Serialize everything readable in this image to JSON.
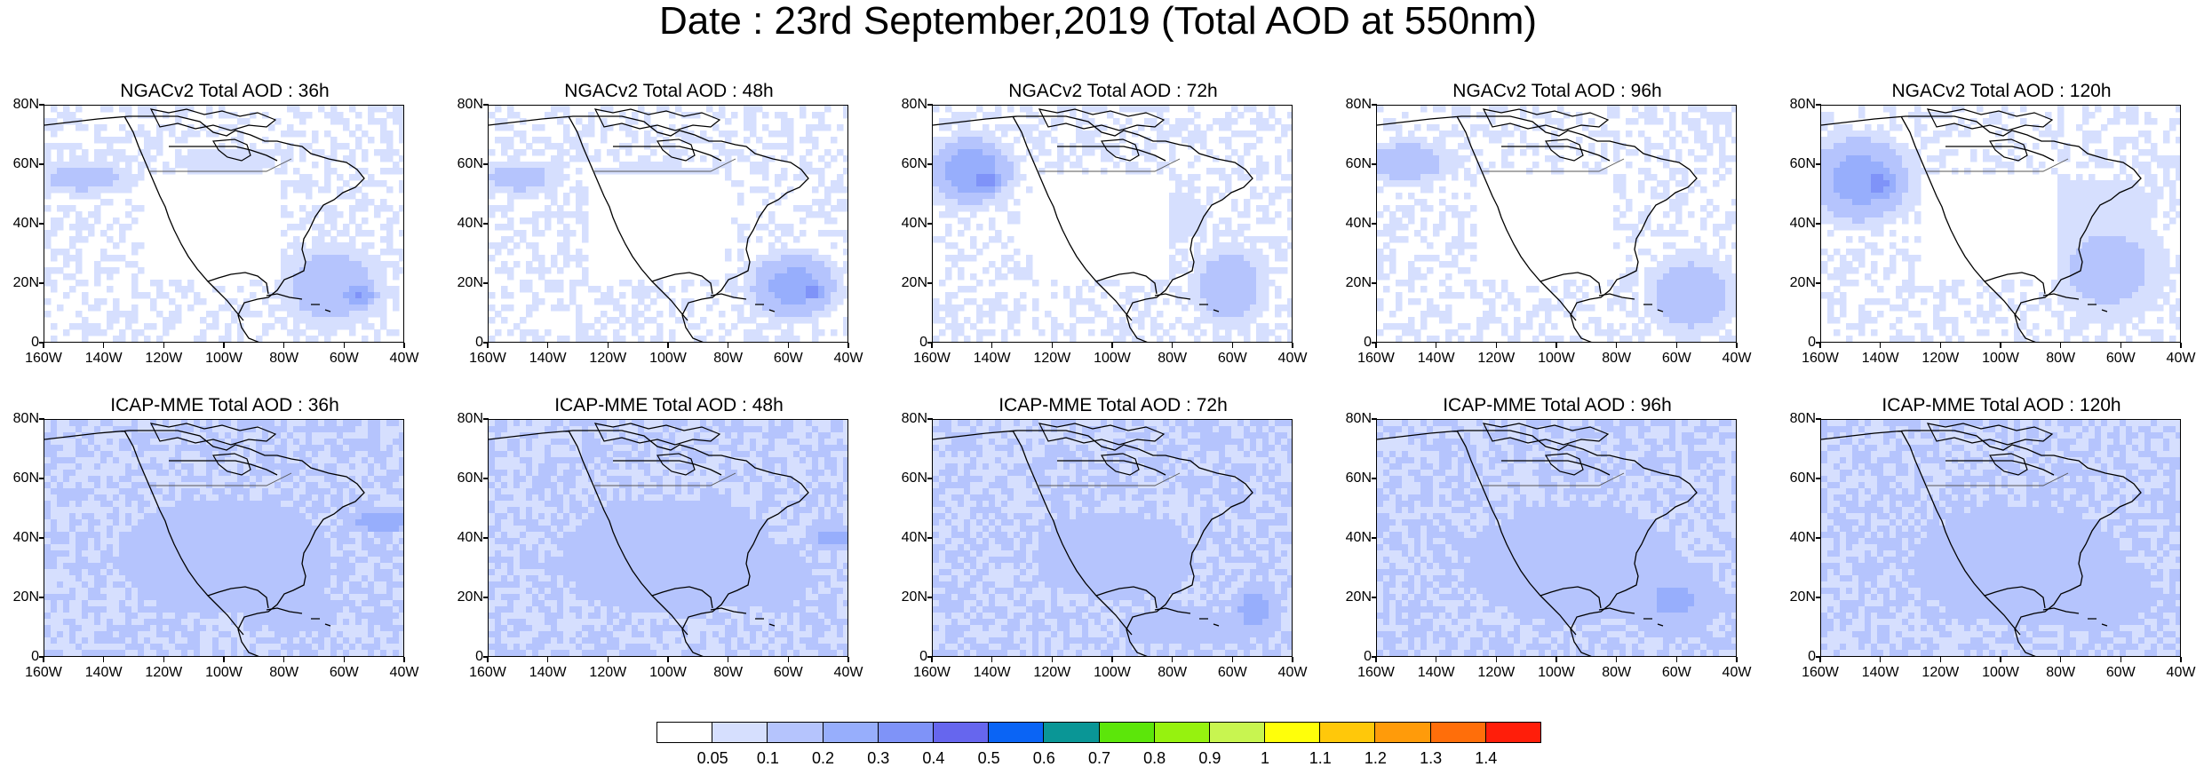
{
  "title": "Date : 23rd September,2019 (Total AOD at 550nm)",
  "panels": [
    {
      "title": "NGACv2 Total AOD : 36h",
      "model": "NGACv2",
      "lead": "36h"
    },
    {
      "title": "NGACv2 Total AOD : 48h",
      "model": "NGACv2",
      "lead": "48h"
    },
    {
      "title": "NGACv2 Total AOD : 72h",
      "model": "NGACv2",
      "lead": "72h"
    },
    {
      "title": "NGACv2 Total AOD : 96h",
      "model": "NGACv2",
      "lead": "96h"
    },
    {
      "title": "NGACv2 Total AOD : 120h",
      "model": "NGACv2",
      "lead": "120h"
    },
    {
      "title": "ICAP-MME Total AOD : 36h",
      "model": "ICAP-MME",
      "lead": "36h"
    },
    {
      "title": "ICAP-MME Total AOD : 48h",
      "model": "ICAP-MME",
      "lead": "48h"
    },
    {
      "title": "ICAP-MME Total AOD : 72h",
      "model": "ICAP-MME",
      "lead": "72h"
    },
    {
      "title": "ICAP-MME Total AOD : 96h",
      "model": "ICAP-MME",
      "lead": "96h"
    },
    {
      "title": "ICAP-MME Total AOD : 120h",
      "model": "ICAP-MME",
      "lead": "120h"
    }
  ],
  "axes": {
    "lat_labels": [
      "80N",
      "60N",
      "40N",
      "20N",
      "0"
    ],
    "lon_labels": [
      "160W",
      "140W",
      "120W",
      "100W",
      "80W",
      "60W",
      "40W"
    ]
  },
  "colorbar": {
    "levels": [
      "0.05",
      "0.1",
      "0.2",
      "0.3",
      "0.4",
      "0.5",
      "0.6",
      "0.7",
      "0.8",
      "0.9",
      "1",
      "1.1",
      "1.2",
      "1.3",
      "1.4"
    ],
    "colors": [
      "#ffffff",
      "#d6dffe",
      "#b5c4fd",
      "#97aefc",
      "#7f93f8",
      "#6666ee",
      "#0a64f5",
      "#0a9696",
      "#5ce60a",
      "#96f20f",
      "#c8f550",
      "#ffff0a",
      "#ffc80a",
      "#ff9b0a",
      "#ff6e0a",
      "#ff1e0a"
    ]
  }
}
